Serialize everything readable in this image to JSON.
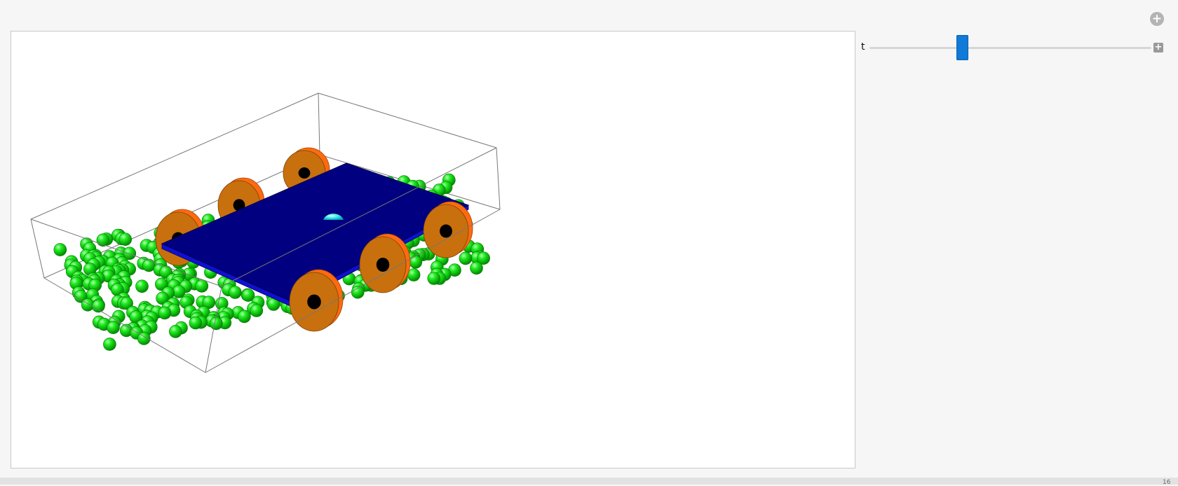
{
  "controls": {
    "param_label": "t",
    "slider_value": 0.33,
    "expand_symbol": "+",
    "add_symbol": "+"
  },
  "status": {
    "corner_text": "16"
  },
  "scene": {
    "ball_color": "#00dd00",
    "body_color": "#000080",
    "wheel_color": "#c8700e",
    "wheel_rim_color": "#ff6a10",
    "marker_color": "#22dddd"
  }
}
